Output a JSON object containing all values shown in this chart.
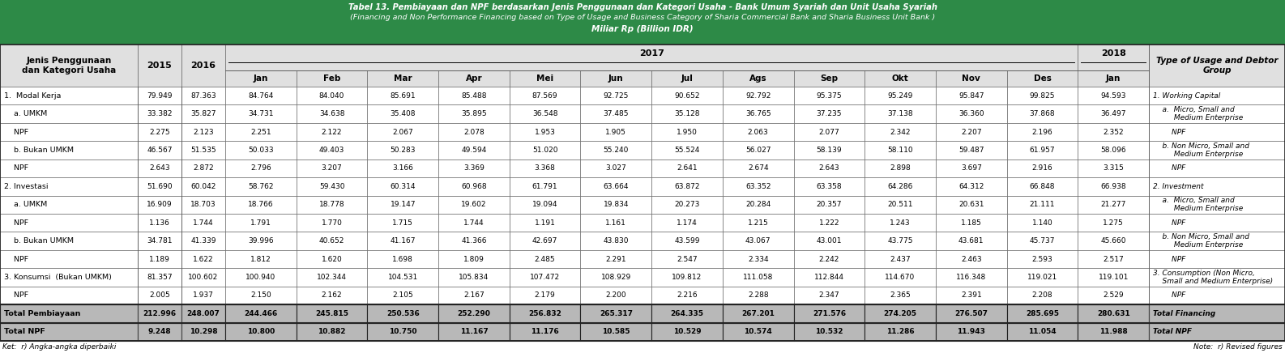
{
  "title_line1": "Tabel 13. Pembiayaan dan NPF berdasarkan Jenis Penggunaan dan Kategori Usaha - Bank Umum Syariah dan Unit Usaha Syariah",
  "title_line2": "(Financing and Non Performance Financing based on Type of Usage and Business Category of Sharia Commercial Bank and Sharia Business Unit Bank )",
  "title_line3": "Miliar Rp (Billion IDR)",
  "header_bg": "#2d8a47",
  "light_gray": "#e0e0e0",
  "total_gray": "#b8b8b8",
  "white": "#ffffff",
  "rows": [
    {
      "label": "1.  Modal Kerja",
      "type": "data",
      "values": [
        "79.949",
        "87.363",
        "84.764",
        "84.040",
        "85.691",
        "85.488",
        "87.569",
        "92.725",
        "90.652",
        "92.792",
        "95.375",
        "95.249",
        "95.847",
        "99.825",
        "94.593"
      ],
      "right_label": "1. Working Capital"
    },
    {
      "label": "    a. UMKM",
      "type": "data",
      "values": [
        "33.382",
        "35.827",
        "34.731",
        "34.638",
        "35.408",
        "35.895",
        "36.548",
        "37.485",
        "35.128",
        "36.765",
        "37.235",
        "37.138",
        "36.360",
        "37.868",
        "36.497"
      ],
      "right_label": "    a.  Micro, Small and\n         Medium Enterprise"
    },
    {
      "label": "    NPF",
      "type": "npf",
      "values": [
        "2.275",
        "2.123",
        "2.251",
        "2.122",
        "2.067",
        "2.078",
        "1.953",
        "1.905",
        "1.950",
        "2.063",
        "2.077",
        "2.342",
        "2.207",
        "2.196",
        "2.352"
      ],
      "right_label": "        NPF"
    },
    {
      "label": "    b. Bukan UMKM",
      "type": "data",
      "values": [
        "46.567",
        "51.535",
        "50.033",
        "49.403",
        "50.283",
        "49.594",
        "51.020",
        "55.240",
        "55.524",
        "56.027",
        "58.139",
        "58.110",
        "59.487",
        "61.957",
        "58.096"
      ],
      "right_label": "    b. Non Micro, Small and\n         Medium Enterprise"
    },
    {
      "label": "    NPF",
      "type": "npf",
      "values": [
        "2.643",
        "2.872",
        "2.796",
        "3.207",
        "3.166",
        "3.369",
        "3.368",
        "3.027",
        "2.641",
        "2.674",
        "2.643",
        "2.898",
        "3.697",
        "2.916",
        "3.315"
      ],
      "right_label": "        NPF"
    },
    {
      "label": "2. Investasi",
      "type": "data",
      "values": [
        "51.690",
        "60.042",
        "58.762",
        "59.430",
        "60.314",
        "60.968",
        "61.791",
        "63.664",
        "63.872",
        "63.352",
        "63.358",
        "64.286",
        "64.312",
        "66.848",
        "66.938"
      ],
      "right_label": "2. Investment"
    },
    {
      "label": "    a. UMKM",
      "type": "data",
      "values": [
        "16.909",
        "18.703",
        "18.766",
        "18.778",
        "19.147",
        "19.602",
        "19.094",
        "19.834",
        "20.273",
        "20.284",
        "20.357",
        "20.511",
        "20.631",
        "21.111",
        "21.277"
      ],
      "right_label": "    a.  Micro, Small and\n         Medium Enterprise"
    },
    {
      "label": "    NPF",
      "type": "npf",
      "values": [
        "1.136",
        "1.744",
        "1.791",
        "1.770",
        "1.715",
        "1.744",
        "1.191",
        "1.161",
        "1.174",
        "1.215",
        "1.222",
        "1.243",
        "1.185",
        "1.140",
        "1.275"
      ],
      "right_label": "        NPF"
    },
    {
      "label": "    b. Bukan UMKM",
      "type": "data",
      "values": [
        "34.781",
        "41.339",
        "39.996",
        "40.652",
        "41.167",
        "41.366",
        "42.697",
        "43.830",
        "43.599",
        "43.067",
        "43.001",
        "43.775",
        "43.681",
        "45.737",
        "45.660"
      ],
      "right_label": "    b. Non Micro, Small and\n         Medium Enterprise"
    },
    {
      "label": "    NPF",
      "type": "npf",
      "values": [
        "1.189",
        "1.622",
        "1.812",
        "1.620",
        "1.698",
        "1.809",
        "2.485",
        "2.291",
        "2.547",
        "2.334",
        "2.242",
        "2.437",
        "2.463",
        "2.593",
        "2.517"
      ],
      "right_label": "        NPF"
    },
    {
      "label": "3. Konsumsi  (Bukan UMKM)",
      "type": "data",
      "values": [
        "81.357",
        "100.602",
        "100.940",
        "102.344",
        "104.531",
        "105.834",
        "107.472",
        "108.929",
        "109.812",
        "111.058",
        "112.844",
        "114.670",
        "116.348",
        "119.021",
        "119.101"
      ],
      "right_label": "3. Consumption (Non Micro,\n    Small and Medium Enterprise)"
    },
    {
      "label": "    NPF",
      "type": "npf",
      "values": [
        "2.005",
        "1.937",
        "2.150",
        "2.162",
        "2.105",
        "2.167",
        "2.179",
        "2.200",
        "2.216",
        "2.288",
        "2.347",
        "2.365",
        "2.391",
        "2.208",
        "2.529"
      ],
      "right_label": "        NPF"
    },
    {
      "label": "Total Pembiayaan",
      "type": "total",
      "values": [
        "212.996",
        "248.007",
        "244.466",
        "245.815",
        "250.536",
        "252.290",
        "256.832",
        "265.317",
        "264.335",
        "267.201",
        "271.576",
        "274.205",
        "276.507",
        "285.695",
        "280.631"
      ],
      "right_label": "Total Financing"
    },
    {
      "label": "Total NPF",
      "type": "total_npf",
      "values": [
        "9.248",
        "10.298",
        "10.800",
        "10.882",
        "10.750",
        "11.167",
        "11.176",
        "10.585",
        "10.529",
        "10.574",
        "10.532",
        "11.286",
        "11.943",
        "11.054",
        "11.988"
      ],
      "right_label": "Total NPF"
    }
  ],
  "months_2017": [
    "Jan",
    "Feb",
    "Mar",
    "Apr",
    "Mei",
    "Jun",
    "Jul",
    "Ags",
    "Sep",
    "Okt",
    "Nov",
    "Des"
  ],
  "footer_left": "Ket:  r) Angka-angka diperbaiki",
  "footer_right": "Note:  r) Revised figures"
}
